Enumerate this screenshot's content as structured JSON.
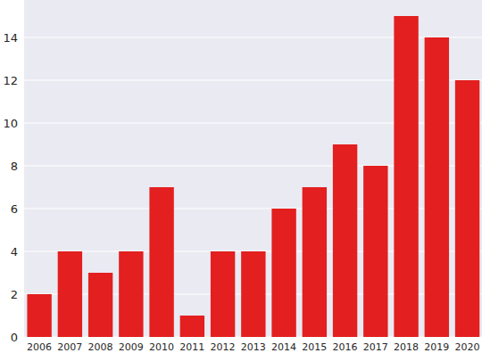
{
  "chart_data": {
    "type": "bar",
    "categories": [
      "2006",
      "2007",
      "2008",
      "2009",
      "2010",
      "2011",
      "2012",
      "2013",
      "2014",
      "2015",
      "2016",
      "2017",
      "2018",
      "2019",
      "2020"
    ],
    "values": [
      2,
      4,
      3,
      4,
      7,
      1,
      4,
      4,
      6,
      7,
      9,
      8,
      15,
      14,
      12
    ],
    "color": "#e31f1f",
    "ylim": [
      0,
      15.75
    ],
    "yticks": [
      0,
      2,
      4,
      6,
      8,
      10,
      12,
      14
    ],
    "grid": true
  }
}
